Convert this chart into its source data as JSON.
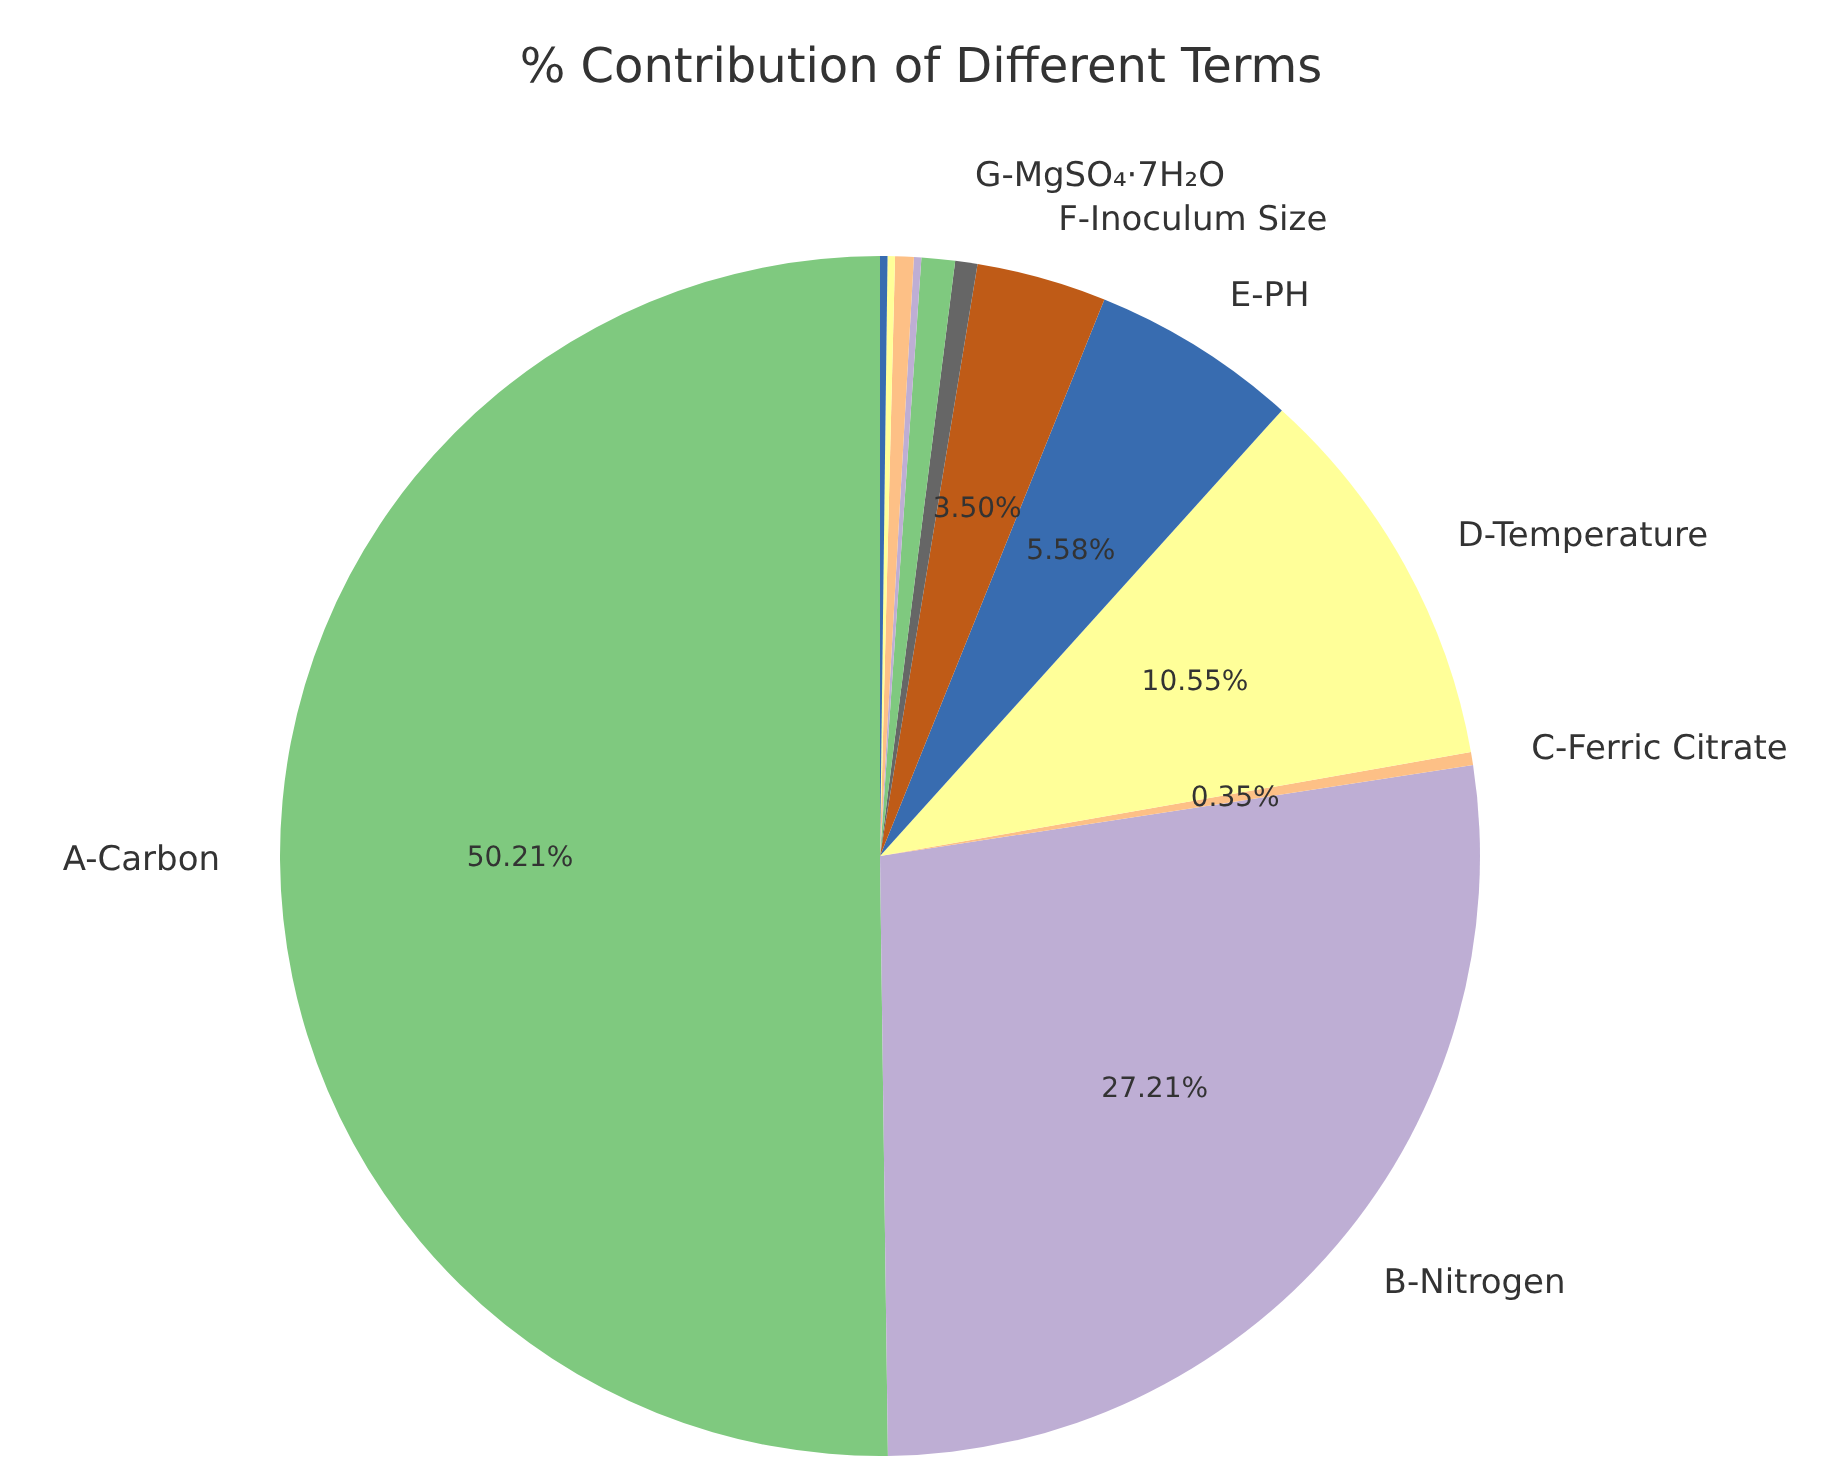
{
  "chart_data": {
    "type": "pie",
    "title": "% Contribution of Different Terms",
    "categories": [
      "A-Carbon",
      "B-Nitrogen",
      "C-Ferric Citrate",
      "D-Temperature",
      "E-PH",
      "F-Inoculum Size",
      "G-MgSO₄·7H₂O",
      null,
      null,
      null,
      null,
      null
    ],
    "values": [
      50.21,
      27.21,
      0.35,
      10.55,
      5.58,
      3.5,
      0.6,
      0.9,
      0.2,
      0.5,
      0.2,
      0.2
    ],
    "colors": [
      "#7fc97f",
      "#beaed4",
      "#fdc086",
      "#ffff99",
      "#386cb0",
      "#bf5b17",
      "#666666",
      "#7fc97f",
      "#beaed4",
      "#fdc086",
      "#ffff99",
      "#386cb0"
    ],
    "value_labels": [
      "50.21%",
      "27.21%",
      "0.35%",
      "10.55%",
      "5.58%",
      "3.50%",
      null,
      null,
      null,
      null,
      null,
      null
    ]
  }
}
